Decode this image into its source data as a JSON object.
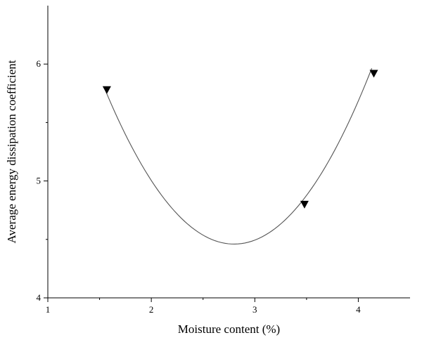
{
  "chart_data": {
    "type": "scatter",
    "title": "",
    "xlabel": "Moisture content (%)",
    "ylabel": "Average energy dissipation coefficient",
    "xlim": [
      1,
      4.5
    ],
    "ylim": [
      4,
      6.5
    ],
    "x_ticks": [
      1,
      2,
      3,
      4
    ],
    "y_ticks": [
      4,
      5,
      6
    ],
    "x_tick_labels": [
      "1",
      "2",
      "3",
      "4"
    ],
    "y_tick_labels": [
      "4",
      "5",
      "6"
    ],
    "grid": false,
    "marker": "inverted-triangle",
    "series": [
      {
        "x": [
          1.57,
          3.48,
          4.15
        ],
        "y": [
          5.78,
          4.8,
          5.92
        ]
      }
    ],
    "fit_curve": {
      "type": "quadratic",
      "vertex": [
        2.8,
        4.46
      ],
      "a": 0.85,
      "x_range": [
        1.55,
        4.13
      ]
    }
  }
}
